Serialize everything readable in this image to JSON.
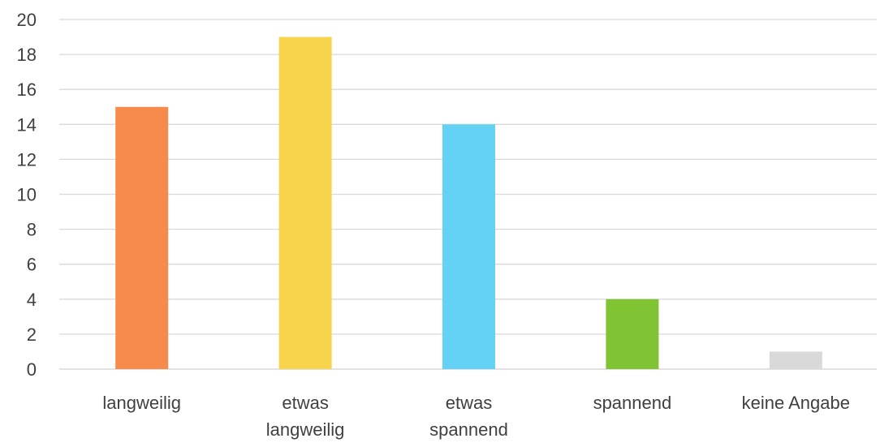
{
  "chart_data": {
    "type": "bar",
    "title": "",
    "xlabel": "",
    "ylabel": "",
    "categories": [
      [
        "langweilig"
      ],
      [
        "etwas",
        "langweilig"
      ],
      [
        "etwas",
        "spannend"
      ],
      [
        "spannend"
      ],
      [
        "keine Angabe"
      ]
    ],
    "values": [
      15,
      19,
      14,
      4,
      1
    ],
    "colors": [
      "#f68b4c",
      "#f8d44c",
      "#64d2f4",
      "#80c434",
      "#d9d9d9"
    ],
    "ylim": [
      0,
      20
    ],
    "yticks": [
      0,
      2,
      4,
      6,
      8,
      10,
      12,
      14,
      16,
      18,
      20
    ],
    "grid": true,
    "legend": "none"
  }
}
